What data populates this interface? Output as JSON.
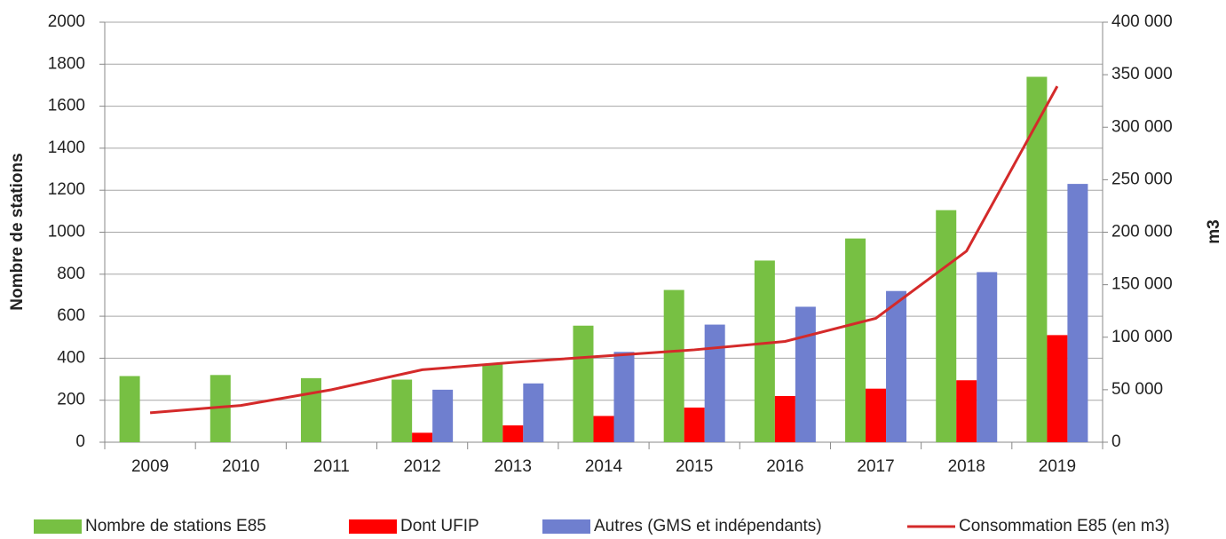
{
  "chart_data": {
    "type": "bar",
    "ylabel": "Nombre de stations",
    "y2label": "m3",
    "categories": [
      "2009",
      "2010",
      "2011",
      "2012",
      "2013",
      "2014",
      "2015",
      "2016",
      "2017",
      "2018",
      "2019"
    ],
    "series": [
      {
        "name": "Nombre de stations E85",
        "color": "#77c043",
        "type": "bar",
        "values": [
          315,
          320,
          305,
          298,
          370,
          555,
          725,
          865,
          970,
          1105,
          1740
        ]
      },
      {
        "name": "Dont UFIP",
        "color": "#ff0000",
        "type": "bar",
        "values": [
          null,
          null,
          null,
          45,
          80,
          125,
          165,
          220,
          255,
          295,
          510
        ]
      },
      {
        "name": "Autres (GMS et indépendants)",
        "color": "#6f7fcf",
        "type": "bar",
        "values": [
          null,
          null,
          null,
          250,
          280,
          430,
          560,
          645,
          720,
          810,
          1230
        ]
      },
      {
        "name": "Consommation E85 (en m3)",
        "color": "#d42a2a",
        "type": "line",
        "axis": "y2",
        "values": [
          28000,
          35000,
          50000,
          69000,
          76000,
          82000,
          88000,
          96000,
          118000,
          182000,
          339000
        ]
      }
    ],
    "ylim": [
      0,
      2000
    ],
    "yticks": [
      0,
      200,
      400,
      600,
      800,
      1000,
      1200,
      1400,
      1600,
      1800,
      2000
    ],
    "y2lim": [
      0,
      400000
    ],
    "y2ticks": [
      0,
      {
        "value": 50000,
        "label": "50 000"
      },
      {
        "value": 100000,
        "label": "100 000"
      },
      {
        "value": 150000,
        "label": "150 000"
      },
      {
        "value": 200000,
        "label": "200 000"
      },
      {
        "value": 250000,
        "label": "250 000"
      },
      {
        "value": 300000,
        "label": "300 000"
      },
      {
        "value": 350000,
        "label": "350 000"
      },
      {
        "value": 400000,
        "label": "400 000"
      }
    ],
    "grid": true,
    "legend": "bottom"
  }
}
